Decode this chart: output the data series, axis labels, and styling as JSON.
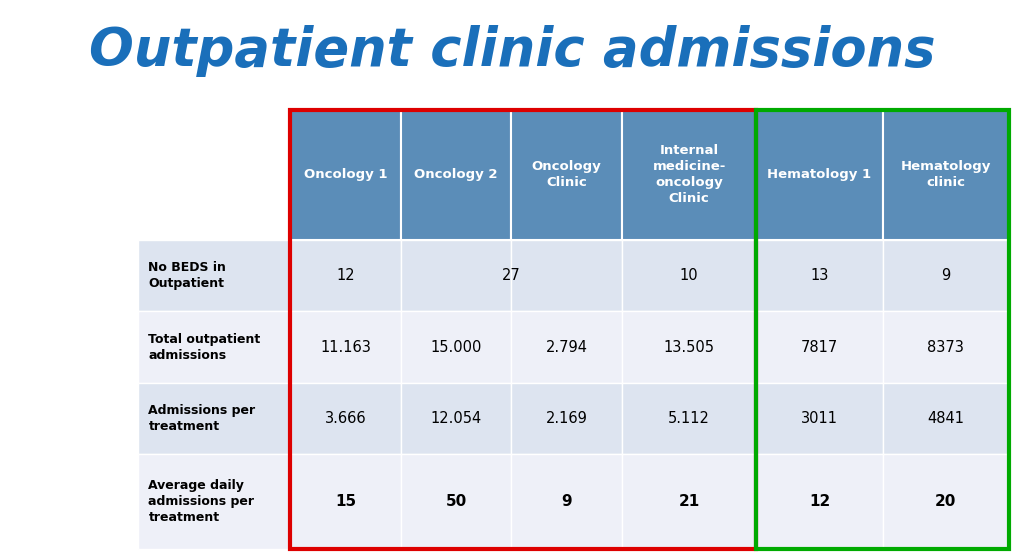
{
  "title": "Outpatient clinic admissions",
  "title_color": "#1a6fba",
  "title_fontsize": 38,
  "background_color": "#ffffff",
  "columns": [
    "Oncology 1",
    "Oncology 2",
    "Oncology\nClinic",
    "Internal\nmedicine-\noncology\nClinic",
    "Hematology 1",
    "Hematology\nclinic"
  ],
  "row_labels": [
    "No BEDS in\nOutpatient",
    "Total outpatient\nadmissions",
    "Admissions per\ntreatment",
    "Average daily\nadmissions per\ntreatment"
  ],
  "data": [
    [
      "12",
      "27",
      "10",
      "13",
      "9"
    ],
    [
      "11.163",
      "15.000",
      "2.794",
      "13.505",
      "7817",
      "8373"
    ],
    [
      "3.666",
      "12.054",
      "2.169",
      "5.112",
      "3011",
      "4841"
    ],
    [
      "15",
      "50",
      "9",
      "21",
      "12",
      "20"
    ]
  ],
  "row0_merged": true,
  "header_bg": "#5b8db8",
  "header_fg": "#ffffff",
  "row_label_bg": "#ccd6ea",
  "row_label_fg": "#000000",
  "cell_bg_light": "#dde4f0",
  "cell_bg_white": "#eef0f8",
  "red_color": "#dd0000",
  "green_color": "#00aa00",
  "row_label_area_bg": "#dce3ef"
}
